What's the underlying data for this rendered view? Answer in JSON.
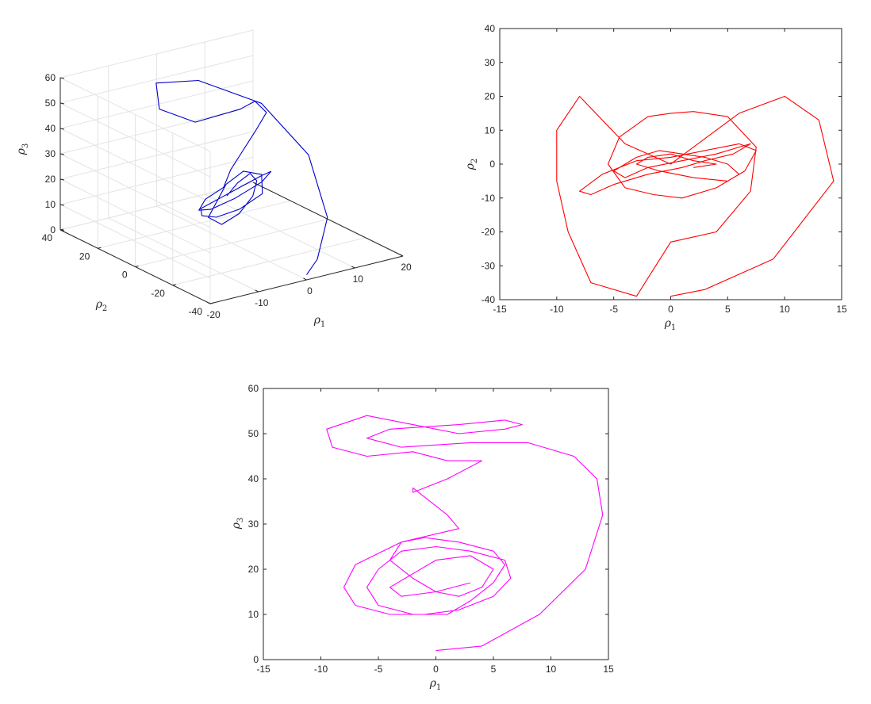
{
  "chart_data": [
    {
      "type": "line",
      "projection": "3d",
      "title": "",
      "xlabel": "ρ",
      "xlabel_sub": "1",
      "ylabel": "ρ",
      "ylabel_sub": "2",
      "zlabel": "ρ",
      "zlabel_sub": "3",
      "xlim": [
        -20,
        20
      ],
      "ylim": [
        -40,
        40
      ],
      "zlim": [
        0,
        60
      ],
      "xticks": [
        "-20",
        "-10",
        "0",
        "10",
        "20"
      ],
      "yticks": [
        "-40",
        "-20",
        "0",
        "20",
        "40"
      ],
      "zticks": [
        "0",
        "10",
        "20",
        "30",
        "40",
        "50",
        "60"
      ],
      "grid": true,
      "color": "#0000cc",
      "series": [
        {
          "x": [
            0,
            3,
            9,
            14,
            12,
            4,
            -4,
            -8,
            -6,
            1,
            6,
            8,
            5,
            2,
            -1,
            -4,
            -7,
            -6,
            -2,
            3,
            7,
            7,
            4,
            0,
            -3,
            -6,
            -5,
            -2,
            2,
            6,
            7,
            4,
            0,
            -3,
            -6,
            -4,
            0,
            4,
            6,
            5,
            2,
            -1
          ],
          "y": [
            -40,
            -38,
            -28,
            -5,
            15,
            28,
            30,
            18,
            4,
            -2,
            3,
            2,
            0,
            -1,
            -2,
            -6,
            -4,
            2,
            6,
            6,
            2,
            -3,
            -6,
            -5,
            -2,
            1,
            3,
            3,
            1,
            -1,
            2,
            4,
            3,
            0,
            -3,
            -5,
            -4,
            -1,
            2,
            3,
            2,
            0
          ],
          "z": [
            2,
            6,
            16,
            30,
            44,
            52,
            54,
            50,
            49,
            53,
            52,
            47,
            42,
            36,
            30,
            26,
            22,
            15,
            12,
            14,
            20,
            26,
            27,
            24,
            20,
            16,
            12,
            10,
            12,
            17,
            23,
            25,
            22,
            18,
            14,
            11,
            13,
            17,
            21,
            24,
            22,
            19
          ]
        }
      ]
    },
    {
      "type": "line",
      "title": "",
      "xlabel": "ρ",
      "xlabel_sub": "1",
      "ylabel": "ρ",
      "ylabel_sub": "2",
      "xlim": [
        -15,
        15
      ],
      "ylim": [
        -40,
        40
      ],
      "xticks": [
        "-15",
        "-10",
        "-5",
        "0",
        "5",
        "10",
        "15"
      ],
      "yticks": [
        "-40",
        "-30",
        "-20",
        "-10",
        "0",
        "10",
        "20",
        "30",
        "40"
      ],
      "grid": false,
      "color": "#ff0000",
      "series": [
        {
          "x": [
            0,
            3,
            9,
            14.3,
            13,
            10,
            6,
            2,
            0,
            -4,
            -8,
            -10,
            -10,
            -9,
            -7,
            -3,
            0,
            4,
            7,
            7.5,
            5,
            2,
            0,
            -2,
            -4.5,
            -5.5,
            -4,
            -1.5,
            1,
            4,
            6.5,
            7.5,
            6,
            3,
            0,
            -3,
            -6,
            -8,
            -7,
            -5,
            -2,
            1,
            3,
            5.5,
            7,
            6,
            4,
            1,
            -2,
            -4,
            -5,
            -3,
            -1,
            1,
            3,
            5,
            6,
            5,
            2,
            -1,
            -3,
            -2,
            0,
            2,
            4,
            2
          ],
          "x_note": "",
          "y": [
            -39,
            -37,
            -28,
            -5,
            13,
            20,
            15,
            5,
            0,
            6,
            20,
            10,
            -5,
            -20,
            -35,
            -39,
            -23,
            -20,
            -8,
            5,
            14,
            15.5,
            15,
            14,
            8,
            0,
            -7,
            -9,
            -10,
            -7,
            -2,
            4,
            6,
            4,
            2,
            1,
            -3,
            -8,
            -9,
            -6,
            -3,
            -1,
            1,
            3,
            6,
            5,
            3,
            1,
            -1,
            -4,
            -2,
            2,
            4,
            3,
            2,
            0,
            -3,
            -5,
            -4,
            -2,
            0,
            2,
            3,
            1,
            0,
            -1
          ],
          "y_note": ""
        }
      ]
    },
    {
      "type": "line",
      "title": "",
      "xlabel": "ρ",
      "xlabel_sub": "1",
      "ylabel": "ρ",
      "ylabel_sub": "3",
      "xlim": [
        -15,
        15
      ],
      "ylim": [
        0,
        60
      ],
      "xticks": [
        "-15",
        "-10",
        "-5",
        "0",
        "5",
        "10",
        "15"
      ],
      "yticks": [
        "0",
        "10",
        "20",
        "30",
        "40",
        "50",
        "60"
      ],
      "grid": false,
      "color": "#ff00ff",
      "series": [
        {
          "x": [
            0,
            4,
            9,
            13,
            14.5,
            14,
            12,
            8,
            3,
            -3,
            -6,
            -4,
            2,
            6,
            7.5,
            6,
            2,
            -2,
            -6,
            -9.5,
            -9,
            -6,
            -2,
            1,
            4,
            1,
            -2,
            -2,
            1,
            2,
            -3,
            -7,
            -8,
            -7,
            -4,
            -1,
            2,
            5,
            6.5,
            6,
            3,
            0,
            -3,
            -5,
            -6,
            -5,
            -2,
            1,
            3,
            5,
            6,
            5,
            2,
            -1,
            -3,
            -4,
            -2,
            0,
            2,
            4,
            5,
            3,
            0,
            -2,
            -4,
            -3,
            0,
            3
          ],
          "y": [
            2,
            3,
            10,
            20,
            32,
            40,
            45,
            48,
            48,
            47,
            49,
            51,
            52,
            53,
            52,
            51,
            50,
            52,
            54,
            51,
            47,
            45,
            46,
            44,
            44,
            40,
            37,
            38,
            32,
            29,
            26,
            21,
            16,
            12,
            10,
            10,
            11,
            14,
            18,
            22,
            24,
            25,
            24,
            20,
            16,
            12,
            10,
            10,
            13,
            17,
            21,
            24,
            26,
            27,
            26,
            22,
            18,
            15,
            14,
            16,
            20,
            23,
            22,
            19,
            16,
            14,
            15,
            17
          ]
        }
      ]
    }
  ]
}
